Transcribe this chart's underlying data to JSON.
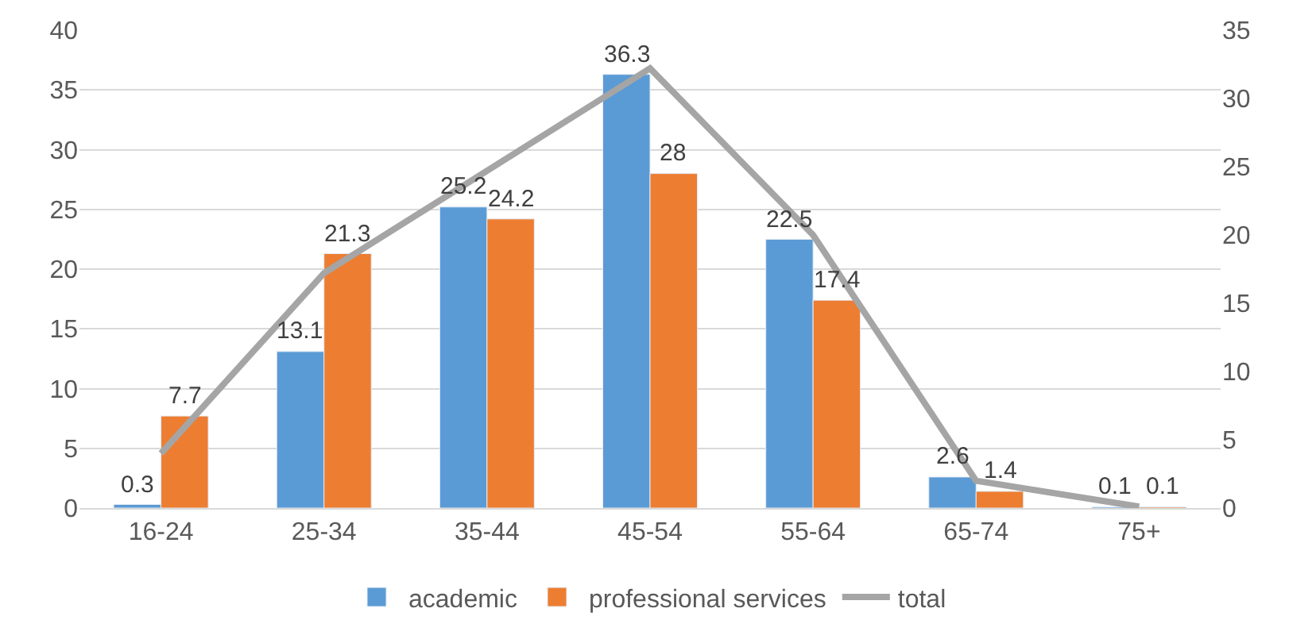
{
  "chart_data": {
    "type": "bar",
    "categories": [
      "16-24",
      "25-34",
      "35-44",
      "45-54",
      "55-64",
      "65-74",
      "75+"
    ],
    "series": [
      {
        "name": "academic",
        "color": "#5b9bd5",
        "values": [
          0.3,
          13.1,
          25.2,
          36.3,
          22.5,
          2.6,
          0.1
        ],
        "value_labels": [
          "0.3",
          "13.1",
          "25.2",
          "36.3",
          "22.5",
          "2.6",
          "0.1"
        ]
      },
      {
        "name": "professional services",
        "color": "#ed7d31",
        "values": [
          7.7,
          21.3,
          24.2,
          28,
          17.4,
          1.4,
          0.1
        ],
        "value_labels": [
          "7.7",
          "21.3",
          "24.2",
          "28",
          "17.4",
          "1.4",
          "0.1"
        ]
      },
      {
        "name": "total",
        "type": "line",
        "axis": "y2",
        "color": "#a5a5a5",
        "values": [
          4,
          17.2,
          24.7,
          32.2,
          20,
          2,
          0.1
        ]
      }
    ],
    "ylim": [
      0,
      40
    ],
    "yticks": [
      0,
      5,
      10,
      15,
      20,
      25,
      30,
      35,
      40
    ],
    "y2lim": [
      0,
      35
    ],
    "y2ticks": [
      0,
      5,
      10,
      15,
      20,
      25,
      30,
      35
    ],
    "grid": "y",
    "legend": "bottom",
    "marker": "none"
  }
}
